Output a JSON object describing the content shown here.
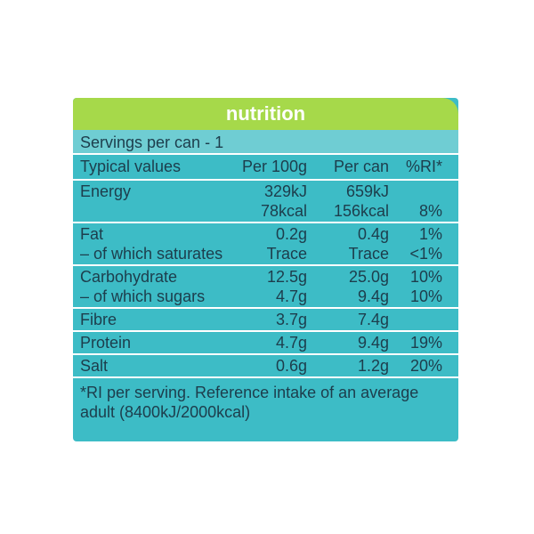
{
  "header": {
    "title": "nutrition"
  },
  "servings": "Servings per can - 1",
  "table": {
    "columns": {
      "label": "Typical values",
      "per100g": "Per 100g",
      "perCan": "Per can",
      "ri": "%RI*"
    },
    "groups": [
      [
        {
          "label": "Energy",
          "per100g": "329kJ",
          "perCan": "659kJ"
        },
        {
          "per100g": "78kcal",
          "perCan": "156kcal",
          "ri": "8%"
        }
      ],
      [
        {
          "label": "Fat",
          "per100g": "0.2g",
          "perCan": "0.4g",
          "ri": "1%"
        },
        {
          "label": "– of which saturates",
          "per100g": "Trace",
          "perCan": "Trace",
          "ri": "<1%"
        }
      ],
      [
        {
          "label": "Carbohydrate",
          "per100g": "12.5g",
          "perCan": "25.0g",
          "ri": "10%"
        },
        {
          "label": "– of which sugars",
          "per100g": "4.7g",
          "perCan": "9.4g",
          "ri": "10%"
        }
      ],
      [
        {
          "label": "Fibre",
          "per100g": "3.7g",
          "perCan": "7.4g"
        }
      ],
      [
        {
          "label": "Protein",
          "per100g": "4.7g",
          "perCan": "9.4g",
          "ri": "19%"
        }
      ],
      [
        {
          "label": "Salt",
          "per100g": "0.6g",
          "perCan": "1.2g",
          "ri": "20%"
        }
      ]
    ]
  },
  "footnote": "*RI per serving. Reference intake of an average adult (8400kJ/2000kcal)"
}
